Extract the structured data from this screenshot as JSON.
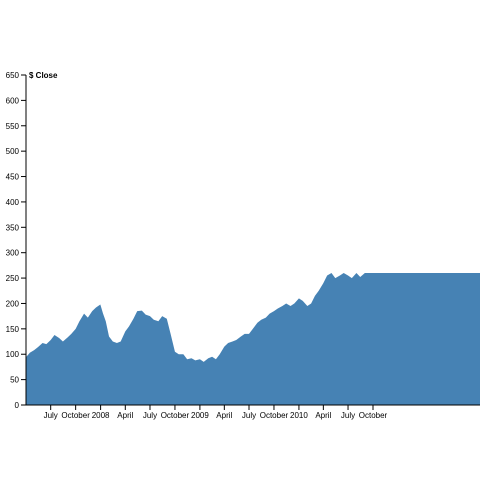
{
  "chart_data": {
    "type": "area",
    "title": "",
    "xlabel": "",
    "ylabel": "$ Close",
    "ylim": [
      0,
      650
    ],
    "xlim": [
      "2007-04-01",
      "2010-09-01"
    ],
    "fill_color": "#4682b4",
    "grid": false,
    "y_ticks": [
      0,
      50,
      100,
      150,
      200,
      250,
      300,
      350,
      400,
      450,
      500,
      550,
      600,
      650
    ],
    "x_ticks": [
      {
        "date": "2007-07-01",
        "label": "July"
      },
      {
        "date": "2007-10-01",
        "label": "October"
      },
      {
        "date": "2008-01-01",
        "label": "2008"
      },
      {
        "date": "2008-04-01",
        "label": "April"
      },
      {
        "date": "2008-07-01",
        "label": "July"
      },
      {
        "date": "2008-10-01",
        "label": "October"
      },
      {
        "date": "2009-01-01",
        "label": "2009"
      },
      {
        "date": "2009-04-01",
        "label": "April"
      },
      {
        "date": "2009-07-01",
        "label": "July"
      },
      {
        "date": "2009-10-01",
        "label": "October"
      },
      {
        "date": "2010-01-01",
        "label": "2010"
      },
      {
        "date": "2010-04-01",
        "label": "April"
      },
      {
        "date": "2010-07-01",
        "label": "July"
      },
      {
        "date": "2010-10-01",
        "label": "October"
      }
    ],
    "series": [
      {
        "points": [
          [
            "2007-04-01",
            94
          ],
          [
            "2007-04-15",
            103
          ],
          [
            "2007-05-01",
            108
          ],
          [
            "2007-05-15",
            114
          ],
          [
            "2007-06-01",
            122
          ],
          [
            "2007-06-15",
            120
          ],
          [
            "2007-07-01",
            128
          ],
          [
            "2007-07-15",
            138
          ],
          [
            "2007-08-01",
            132
          ],
          [
            "2007-08-15",
            125
          ],
          [
            "2007-09-01",
            133
          ],
          [
            "2007-09-15",
            140
          ],
          [
            "2007-10-01",
            150
          ],
          [
            "2007-10-15",
            165
          ],
          [
            "2007-11-01",
            180
          ],
          [
            "2007-11-15",
            172
          ],
          [
            "2007-12-01",
            185
          ],
          [
            "2007-12-15",
            192
          ],
          [
            "2007-12-31",
            198
          ],
          [
            "2008-01-10",
            180
          ],
          [
            "2008-01-20",
            165
          ],
          [
            "2008-02-01",
            135
          ],
          [
            "2008-02-15",
            125
          ],
          [
            "2008-03-01",
            122
          ],
          [
            "2008-03-15",
            125
          ],
          [
            "2008-04-01",
            145
          ],
          [
            "2008-04-15",
            155
          ],
          [
            "2008-05-01",
            170
          ],
          [
            "2008-05-15",
            185
          ],
          [
            "2008-06-01",
            186
          ],
          [
            "2008-06-15",
            178
          ],
          [
            "2008-07-01",
            175
          ],
          [
            "2008-07-15",
            168
          ],
          [
            "2008-08-01",
            165
          ],
          [
            "2008-08-15",
            175
          ],
          [
            "2008-09-01",
            170
          ],
          [
            "2008-09-15",
            140
          ],
          [
            "2008-10-01",
            105
          ],
          [
            "2008-10-15",
            100
          ],
          [
            "2008-11-01",
            100
          ],
          [
            "2008-11-15",
            90
          ],
          [
            "2008-12-01",
            92
          ],
          [
            "2008-12-15",
            88
          ],
          [
            "2009-01-01",
            90
          ],
          [
            "2009-01-15",
            85
          ],
          [
            "2009-02-01",
            92
          ],
          [
            "2009-02-15",
            95
          ],
          [
            "2009-03-01",
            90
          ],
          [
            "2009-03-15",
            100
          ],
          [
            "2009-04-01",
            115
          ],
          [
            "2009-04-15",
            122
          ],
          [
            "2009-05-01",
            125
          ],
          [
            "2009-05-15",
            128
          ],
          [
            "2009-06-01",
            135
          ],
          [
            "2009-06-15",
            140
          ],
          [
            "2009-07-01",
            140
          ],
          [
            "2009-07-15",
            150
          ],
          [
            "2009-08-01",
            162
          ],
          [
            "2009-08-15",
            168
          ],
          [
            "2009-09-01",
            172
          ],
          [
            "2009-09-15",
            180
          ],
          [
            "2009-10-01",
            185
          ],
          [
            "2009-10-15",
            190
          ],
          [
            "2009-11-01",
            195
          ],
          [
            "2009-11-15",
            200
          ],
          [
            "2009-12-01",
            195
          ],
          [
            "2009-12-15",
            200
          ],
          [
            "2010-01-01",
            210
          ],
          [
            "2010-01-15",
            205
          ],
          [
            "2010-02-01",
            195
          ],
          [
            "2010-02-15",
            200
          ],
          [
            "2010-03-01",
            215
          ],
          [
            "2010-03-15",
            225
          ],
          [
            "2010-04-01",
            240
          ],
          [
            "2010-04-15",
            255
          ],
          [
            "2010-05-01",
            260
          ],
          [
            "2010-05-15",
            250
          ],
          [
            "2010-06-01",
            255
          ],
          [
            "2010-06-15",
            260
          ],
          [
            "2010-07-01",
            255
          ],
          [
            "2010-07-15",
            250
          ],
          [
            "2010-08-01",
            260
          ],
          [
            "2010-08-15",
            252
          ],
          [
            "2010-09-01",
            260
          ]
        ]
      }
    ]
  }
}
